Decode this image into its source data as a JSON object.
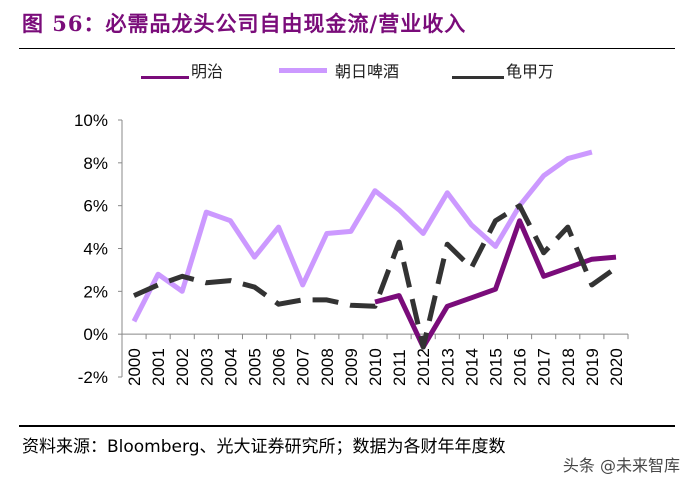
{
  "title": "图 56：必需品龙头公司自由现金流/营业收入",
  "source": "资料来源：Bloomberg、光大证券研究所；数据为各财年年度数",
  "watermark": "头条 @未来智库",
  "chart_data": {
    "type": "line",
    "title": "图 56：必需品龙头公司自由现金流/营业收入",
    "xlabel": "",
    "ylabel": "",
    "categories": [
      "2000",
      "2001",
      "2002",
      "2003",
      "2004",
      "2005",
      "2006",
      "2007",
      "2008",
      "2009",
      "2010",
      "2011",
      "2012",
      "2013",
      "2014",
      "2015",
      "2016",
      "2017",
      "2018",
      "2019",
      "2020"
    ],
    "yticks": [
      "-2%",
      "0%",
      "2%",
      "4%",
      "6%",
      "8%",
      "10%"
    ],
    "ylim": [
      -2,
      10
    ],
    "grid": false,
    "legend_placement": "top",
    "series": [
      {
        "name": "明治",
        "color": "#7a0c7a",
        "style": "solid",
        "values": [
          null,
          null,
          null,
          null,
          null,
          null,
          null,
          null,
          null,
          null,
          1.5,
          1.8,
          -0.6,
          1.3,
          1.7,
          2.1,
          5.3,
          2.7,
          3.1,
          3.5,
          3.6
        ]
      },
      {
        "name": "朝日啤酒",
        "color": "#cc99ff",
        "style": "solid",
        "values": [
          0.6,
          2.8,
          2.0,
          5.7,
          5.3,
          3.6,
          5.0,
          2.3,
          4.7,
          4.8,
          6.7,
          5.8,
          4.7,
          6.6,
          5.1,
          4.1,
          6.0,
          7.4,
          8.2,
          8.5,
          null
        ]
      },
      {
        "name": "龟甲万",
        "color": "#333333",
        "style": "dashed",
        "values": [
          1.8,
          2.3,
          2.7,
          2.4,
          2.5,
          2.2,
          1.4,
          1.6,
          1.6,
          1.35,
          1.3,
          4.3,
          -0.6,
          4.2,
          3.1,
          5.3,
          6.0,
          3.8,
          5.0,
          2.3,
          3.1
        ]
      }
    ]
  }
}
